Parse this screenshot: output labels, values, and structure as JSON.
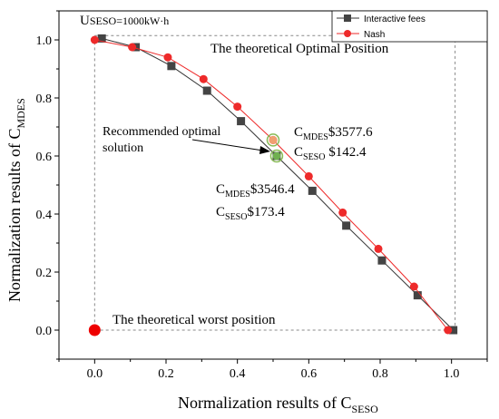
{
  "chart_data": {
    "type": "line",
    "xlabel_main": "Normalization results of C",
    "xlabel_sub": "SESO",
    "ylabel_main": "Normalization results of C",
    "ylabel_sub": "MDES",
    "xlim": [
      -0.1,
      1.1
    ],
    "ylim": [
      -0.1,
      1.1
    ],
    "xticks": [
      0.0,
      0.2,
      0.4,
      0.6,
      0.8,
      1.0
    ],
    "yticks": [
      0.0,
      0.2,
      0.4,
      0.6,
      0.8,
      1.0
    ],
    "xtick_labels": [
      "0.0",
      "0.2",
      "0.4",
      "0.6",
      "0.8",
      "1.0"
    ],
    "ytick_labels": [
      "0.0",
      "0.2",
      "0.4",
      "0.6",
      "0.8",
      "1.0"
    ],
    "legend_position": "top-right",
    "series": [
      {
        "name": "Interactive fees",
        "color": "#333333",
        "marker": "square",
        "x": [
          0.02,
          0.115,
          0.215,
          0.315,
          0.41,
          0.51,
          0.61,
          0.705,
          0.805,
          0.905,
          1.005
        ],
        "y": [
          1.005,
          0.975,
          0.91,
          0.825,
          0.72,
          0.6,
          0.48,
          0.36,
          0.24,
          0.12,
          0.0
        ]
      },
      {
        "name": "Nash",
        "color": "#ee2a2a",
        "marker": "circle",
        "x": [
          0.0,
          0.105,
          0.205,
          0.305,
          0.4,
          0.5,
          0.6,
          0.695,
          0.795,
          0.895,
          0.99
        ],
        "y": [
          1.0,
          0.975,
          0.94,
          0.865,
          0.77,
          0.655,
          0.53,
          0.405,
          0.28,
          0.15,
          0.0
        ]
      }
    ],
    "special_points": [
      {
        "label": "optimal",
        "x": 1.01,
        "y": 1.015,
        "color": "#22cc22"
      },
      {
        "label": "worst",
        "x": 0.0,
        "y": 0.0,
        "color": "#ee0000"
      }
    ],
    "reference_box": {
      "x0": 0.0,
      "y0": 0.0,
      "x1": 1.01,
      "y1": 1.015
    },
    "highlighted_points": [
      {
        "x": 0.5,
        "y": 0.655,
        "fill": "#f0a070",
        "ring": "#88bb55"
      },
      {
        "x": 0.51,
        "y": 0.6,
        "fill": "#70b050",
        "ring": "#88bb55"
      }
    ],
    "annotations": {
      "useso": "U",
      "useso_rest": "SESO=1000kW·h",
      "optimal_position": "The theoretical Optimal Position",
      "worst_position": "The theoretical worst position",
      "recommended_line1": "Recommended optimal",
      "recommended_line2": "solution",
      "nash_cmdes_c": "C",
      "nash_cmdes_sub": "MDES",
      "nash_cmdes_val": "$3577.6",
      "nash_cseso_c": "C",
      "nash_cseso_sub": "SESO",
      "nash_cseso_val": " $142.4",
      "fee_cmdes_c": "C",
      "fee_cmdes_sub": "MDES",
      "fee_cmdes_val": "$3546.4",
      "fee_cseso_c": "C",
      "fee_cseso_sub": "SESO",
      "fee_cseso_val": "$173.4"
    }
  }
}
